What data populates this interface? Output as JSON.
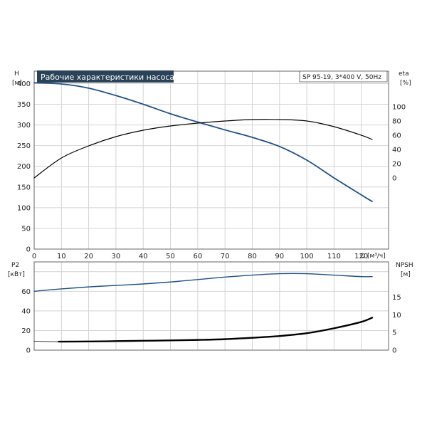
{
  "chart_data": [
    {
      "type": "line",
      "title": "Рабочие характеристики насоса",
      "legend": "SP 95-19, 3*400 V, 50Hz",
      "xlabel": "Q [м³/ч]",
      "ylabel_left": "H",
      "ylabel_left_unit": "[м]",
      "ylabel_right": "eta",
      "ylabel_right_unit": "[%]",
      "xlim": [
        0,
        130
      ],
      "ylim_left": [
        0,
        430
      ],
      "ylim_right": [
        -100,
        150
      ],
      "x_ticks": [
        "0",
        "10",
        "20",
        "30",
        "40",
        "50",
        "60",
        "70",
        "80",
        "90",
        "100",
        "110",
        "120"
      ],
      "y_left_ticks": [
        "0",
        "50",
        "100",
        "150",
        "200",
        "250",
        "300",
        "350",
        "400"
      ],
      "y_right_ticks": [
        "0",
        "20",
        "40",
        "60",
        "80",
        "100"
      ],
      "grid": true,
      "series": [
        {
          "axis": "left",
          "color": "#1f4f86",
          "x": [
            0,
            10,
            20,
            30,
            40,
            50,
            60,
            70,
            80,
            90,
            100,
            110,
            120,
            124
          ],
          "y": [
            402,
            399,
            389,
            371,
            350,
            327,
            307,
            288,
            270,
            248,
            215,
            172,
            131,
            115
          ]
        },
        {
          "axis": "right",
          "color": "#000000",
          "x": [
            0,
            10,
            20,
            30,
            40,
            50,
            60,
            70,
            80,
            90,
            100,
            110,
            120,
            124
          ],
          "y": [
            0,
            28,
            45,
            58,
            67,
            73,
            77,
            80,
            82,
            82,
            80,
            72,
            60,
            54
          ]
        }
      ]
    },
    {
      "type": "line",
      "ylabel_left": "P2",
      "ylabel_left_unit": "[кВт]",
      "ylabel_right": "NPSH",
      "ylabel_right_unit": "[м]",
      "xlim": [
        0,
        130
      ],
      "ylim_left": [
        0,
        90
      ],
      "ylim_right": [
        0,
        25
      ],
      "y_left_ticks": [
        "0",
        "20",
        "40",
        "60"
      ],
      "y_right_ticks": [
        "0",
        "5",
        "10",
        "15"
      ],
      "grid": true,
      "series": [
        {
          "axis": "left",
          "color": "#1f4f86",
          "x": [
            0,
            10,
            20,
            30,
            40,
            50,
            60,
            70,
            80,
            90,
            100,
            110,
            120,
            124
          ],
          "y": [
            60,
            62.5,
            64.5,
            66,
            67.5,
            69.5,
            72,
            74.5,
            76.5,
            78,
            78,
            76.5,
            75,
            75
          ]
        },
        {
          "axis": "right",
          "color": "#000000",
          "x": [
            0,
            9,
            20,
            30,
            40,
            50,
            60,
            70,
            80,
            90,
            100,
            110,
            120,
            124
          ],
          "y": [
            2.5,
            2.4,
            2.45,
            2.55,
            2.65,
            2.75,
            2.9,
            3.1,
            3.5,
            4.0,
            4.8,
            6.2,
            8.0,
            9.2
          ]
        }
      ]
    }
  ]
}
